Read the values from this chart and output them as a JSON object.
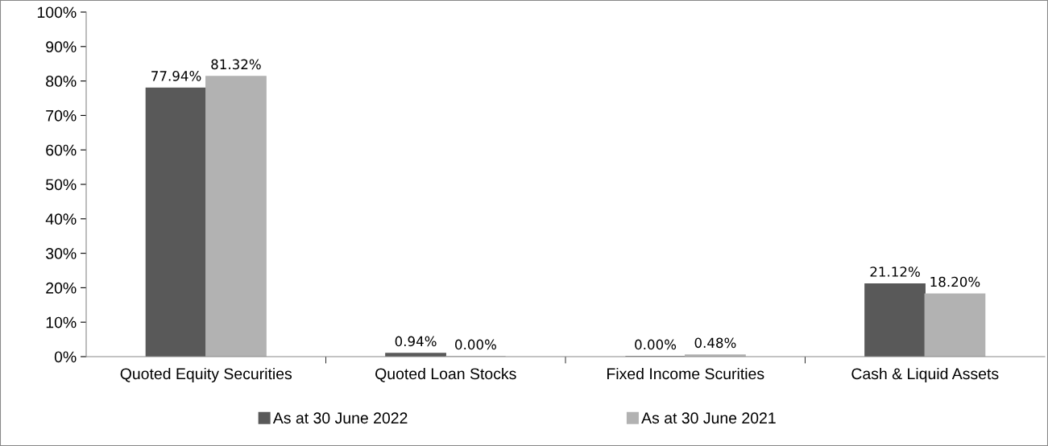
{
  "chart_data": {
    "type": "bar",
    "categories": [
      "Quoted Equity Securities",
      "Quoted Loan Stocks",
      "Fixed Income Scurities",
      "Cash & Liquid Assets"
    ],
    "series": [
      {
        "name": "As at 30 June 2022",
        "color": "#595959",
        "values": [
          77.94,
          0.94,
          0.0,
          21.12
        ],
        "value_labels": [
          "77.94%",
          "0.94%",
          "0.00%",
          "21.12%"
        ]
      },
      {
        "name": "As at 30 June 2021",
        "color": "#b2b2b2",
        "values": [
          81.32,
          0.0,
          0.48,
          18.2
        ],
        "value_labels": [
          "81.32%",
          "0.00%",
          "0.48%",
          "18.20%"
        ]
      }
    ],
    "ylim": [
      0,
      100
    ],
    "yticks": [
      {
        "value": 0,
        "label": "0%"
      },
      {
        "value": 10,
        "label": "10%"
      },
      {
        "value": 20,
        "label": "20%"
      },
      {
        "value": 30,
        "label": "30%"
      },
      {
        "value": 40,
        "label": "40%"
      },
      {
        "value": 50,
        "label": "50%"
      },
      {
        "value": 60,
        "label": "60%"
      },
      {
        "value": 70,
        "label": "70%"
      },
      {
        "value": 80,
        "label": "80%"
      },
      {
        "value": 90,
        "label": "90%"
      },
      {
        "value": 100,
        "label": "100%"
      }
    ],
    "grid": false,
    "legend": "bottom"
  }
}
